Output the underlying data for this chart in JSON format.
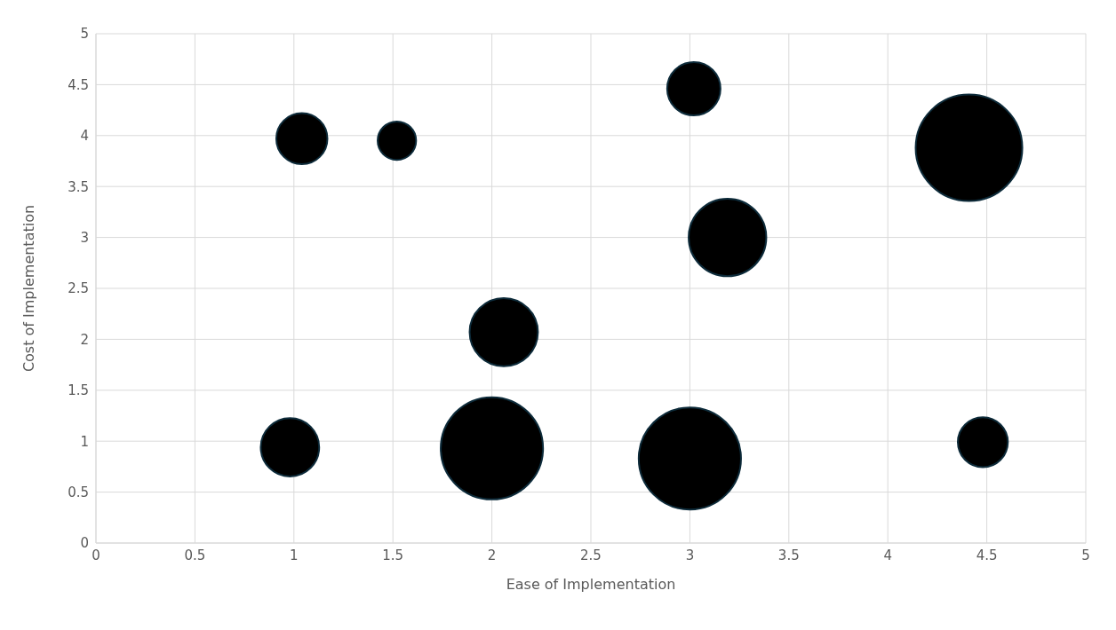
{
  "chart_data": {
    "type": "bubble",
    "xlabel": "Ease of Implementation",
    "ylabel": "Cost of Implementation",
    "x": [
      1.04,
      1.52,
      3.02,
      4.41,
      3.19,
      2.06,
      0.98,
      2.0,
      3.0,
      4.48
    ],
    "values": [
      3.97,
      3.95,
      4.46,
      3.88,
      3.0,
      2.07,
      0.94,
      0.93,
      0.83,
      0.99
    ],
    "sizes": [
      0.23,
      0.13,
      0.25,
      1,
      0.53,
      0.41,
      0.3,
      0.92,
      0.92,
      0.22
    ],
    "color": "#000000",
    "xlim": [
      0,
      5
    ],
    "ylim": [
      0,
      5
    ],
    "xticks": [
      0,
      0.5,
      1,
      1.5,
      2,
      2.5,
      3,
      3.5,
      4,
      4.5,
      5
    ],
    "yticks": [
      0,
      0.5,
      1,
      1.5,
      2,
      2.5,
      3,
      3.5,
      4,
      4.5,
      5
    ],
    "grid": true
  }
}
